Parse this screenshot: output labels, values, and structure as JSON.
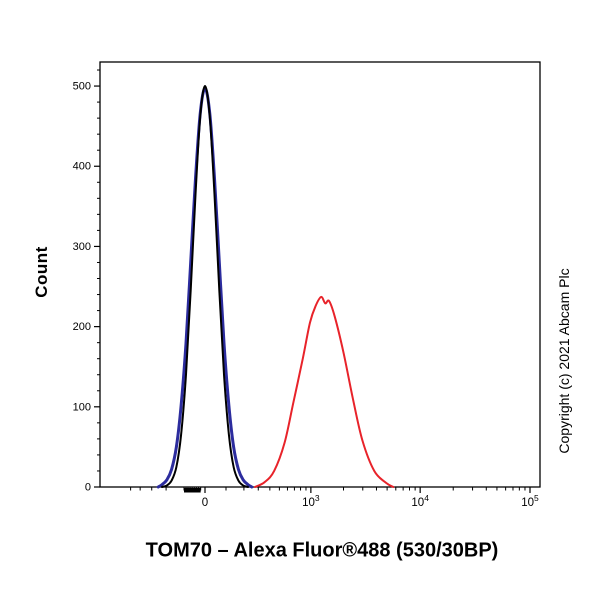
{
  "title": {
    "text": "TOM70 – Alexa Fluor®488 (530/30BP)"
  },
  "ylabel": "Count",
  "copyright": "Copyright (c) 2021 Abcam Plc",
  "chart_data": {
    "type": "line",
    "subtype": "flow-cytometry-histogram",
    "title": "TOM70 – Alexa Fluor®488 (530/30BP)",
    "xlabel": "TOM70 – Alexa Fluor®488 (530/30BP)",
    "ylabel": "Count",
    "grid": false,
    "legend": null,
    "x_scale": "arcsinh",
    "arcsinh_cofactor": 220,
    "xlim": [
      -1000,
      100000
    ],
    "ylim": [
      0,
      530
    ],
    "yticks": [
      0,
      100,
      200,
      300,
      400,
      500
    ],
    "y_minor_step": 20,
    "xticks": [
      {
        "value": 0,
        "label": "0"
      },
      {
        "value": 1000,
        "label": "10^3",
        "base": "10",
        "exp": "3"
      },
      {
        "value": 10000,
        "label": "10^4",
        "base": "10",
        "exp": "4"
      },
      {
        "value": 100000,
        "label": "10^5",
        "base": "10",
        "exp": "5"
      }
    ],
    "x_minor_ticks": [
      -500,
      -400,
      -300,
      -200,
      -100,
      -90,
      -80,
      -70,
      -60,
      -50,
      -40,
      -30,
      -20,
      100,
      200,
      300,
      400,
      500,
      600,
      700,
      800,
      900,
      2000,
      3000,
      4000,
      5000,
      6000,
      7000,
      8000,
      9000,
      20000,
      30000,
      40000,
      50000,
      60000,
      70000,
      80000,
      90000
    ],
    "tick_cluster": {
      "from": -100,
      "to": -20
    },
    "series": [
      {
        "name": "blue-curve",
        "color": "#2c2c9e",
        "width": 3,
        "peak_x": 0,
        "peak_count": 497,
        "points": [
          [
            -252,
            0
          ],
          [
            -226,
            3
          ],
          [
            -195,
            9
          ],
          [
            -167,
            22
          ],
          [
            -140,
            50
          ],
          [
            -115,
            101
          ],
          [
            -90,
            179
          ],
          [
            -67,
            280
          ],
          [
            -44,
            385
          ],
          [
            -22,
            466
          ],
          [
            0,
            497
          ],
          [
            22,
            466
          ],
          [
            44,
            385
          ],
          [
            67,
            280
          ],
          [
            90,
            179
          ],
          [
            115,
            101
          ],
          [
            140,
            50
          ],
          [
            167,
            22
          ],
          [
            195,
            9
          ],
          [
            226,
            3
          ],
          [
            252,
            0
          ]
        ]
      },
      {
        "name": "black-curve",
        "color": "#000000",
        "width": 2,
        "peak_x": 0,
        "peak_count": 500,
        "points": [
          [
            -226,
            0
          ],
          [
            -195,
            2
          ],
          [
            -167,
            8
          ],
          [
            -140,
            25
          ],
          [
            -115,
            65
          ],
          [
            -90,
            140
          ],
          [
            -67,
            245
          ],
          [
            -44,
            365
          ],
          [
            -22,
            462
          ],
          [
            0,
            500
          ],
          [
            22,
            462
          ],
          [
            44,
            365
          ],
          [
            67,
            245
          ],
          [
            90,
            140
          ],
          [
            115,
            65
          ],
          [
            140,
            25
          ],
          [
            167,
            8
          ],
          [
            195,
            2
          ],
          [
            226,
            0
          ]
        ]
      },
      {
        "name": "red-curve",
        "color": "#e8232a",
        "width": 2,
        "peak_x": 1246,
        "peak_count": 237,
        "points": [
          [
            276,
            0
          ],
          [
            352,
            6
          ],
          [
            443,
            20
          ],
          [
            562,
            55
          ],
          [
            683,
            105
          ],
          [
            840,
            160
          ],
          [
            981,
            205
          ],
          [
            1109,
            226
          ],
          [
            1246,
            237
          ],
          [
            1360,
            229
          ],
          [
            1473,
            232
          ],
          [
            1658,
            213
          ],
          [
            1997,
            168
          ],
          [
            2438,
            110
          ],
          [
            2978,
            58
          ],
          [
            3822,
            20
          ],
          [
            4915,
            5
          ],
          [
            5700,
            0
          ]
        ]
      }
    ]
  }
}
